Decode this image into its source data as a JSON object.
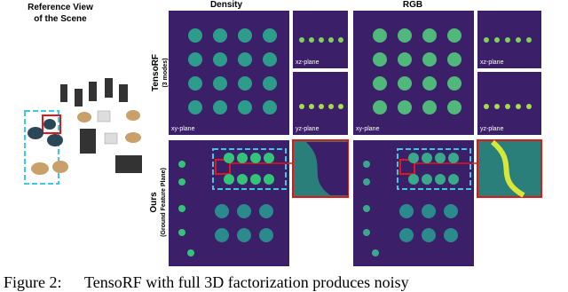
{
  "reference": {
    "title_line1": "Reference View",
    "title_line2": "of the Scene"
  },
  "columns": {
    "density": "Density",
    "rgb": "RGB"
  },
  "rows": {
    "tensorf": {
      "label": "TensoRF",
      "sublabel": "(3 modes)"
    },
    "ours": {
      "label": "Ours",
      "sublabel": "(Ground Feature Plane)"
    }
  },
  "planes": {
    "density_xy": "xy-plane",
    "density_xz": "xz-plane",
    "density_yz": "yz-plane",
    "rgb_xy": "xy-plane",
    "rgb_xz": "xz-plane",
    "rgb_yz": "yz-plane"
  },
  "caption": {
    "label": "Figure 2:",
    "text": "TensoRF with full 3D factorization produces noisy"
  }
}
